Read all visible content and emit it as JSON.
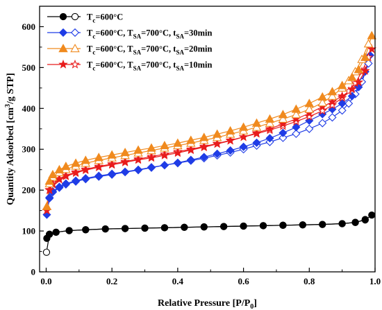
{
  "chart_data": {
    "type": "line",
    "xlabel": "Relative Pressure [P/P0]",
    "ylabel": "Quantity Adsorbed [cm3/g STP]",
    "xlim": [
      -0.02,
      1.0
    ],
    "ylim": [
      0,
      650
    ],
    "x_ticks": [
      "0.0",
      "0.2",
      "0.4",
      "0.6",
      "0.8",
      "1.0"
    ],
    "y_ticks": [
      "0",
      "100",
      "200",
      "300",
      "400",
      "500",
      "600"
    ],
    "grid": false,
    "legend_position": "top-left",
    "series": [
      {
        "name": "Tc=600°C",
        "legend": [
          {
            "base": "T",
            "sub": "c",
            "rest": "=600°C"
          }
        ],
        "color": "#000000",
        "marker": "circle",
        "adsorption": {
          "x": [
            0.002,
            0.01,
            0.03,
            0.07,
            0.12,
            0.18,
            0.24,
            0.3,
            0.36,
            0.42,
            0.48,
            0.54,
            0.6,
            0.66,
            0.72,
            0.78,
            0.84,
            0.9,
            0.94,
            0.97,
            0.99
          ],
          "y": [
            82,
            92,
            97,
            101,
            103,
            105,
            106,
            107,
            108,
            109,
            110,
            111,
            112,
            113,
            114,
            115,
            116,
            118,
            121,
            127,
            139
          ]
        },
        "desorption": {
          "x": [
            0.97,
            0.94,
            0.9,
            0.84,
            0.78,
            0.72,
            0.66,
            0.6,
            0.54,
            0.48,
            0.42,
            0.36,
            0.3,
            0.24,
            0.18,
            0.12,
            0.07,
            0.03,
            0.01,
            0.001
          ],
          "y": [
            128,
            121,
            118,
            116,
            115,
            114,
            113,
            112,
            111,
            110,
            109,
            108,
            107,
            106,
            105,
            103,
            101,
            97,
            92,
            48
          ]
        }
      },
      {
        "name": "Tc=600°C, TSA=700°C, tSA=30min",
        "legend": [
          {
            "base": "T",
            "sub": "c",
            "rest": "=600°C,  "
          },
          {
            "base": "T",
            "sub": "SA",
            "rest": "=700°C,  "
          },
          {
            "base": "t",
            "sub": "SA",
            "rest": "=30min"
          }
        ],
        "color": "#1f3ce6",
        "marker": "diamond",
        "adsorption": {
          "x": [
            0.002,
            0.01,
            0.02,
            0.04,
            0.06,
            0.09,
            0.12,
            0.16,
            0.2,
            0.24,
            0.28,
            0.32,
            0.36,
            0.4,
            0.44,
            0.48,
            0.52,
            0.56,
            0.6,
            0.64,
            0.68,
            0.72,
            0.76,
            0.8,
            0.84,
            0.87,
            0.9,
            0.93,
            0.95,
            0.97,
            0.985
          ],
          "y": [
            140,
            180,
            195,
            206,
            214,
            221,
            227,
            233,
            238,
            244,
            249,
            255,
            261,
            267,
            274,
            281,
            289,
            297,
            306,
            316,
            327,
            340,
            354,
            370,
            386,
            398,
            412,
            430,
            452,
            490,
            530
          ]
        },
        "desorption": {
          "x": [
            0.98,
            0.96,
            0.94,
            0.92,
            0.9,
            0.87,
            0.84,
            0.8,
            0.76,
            0.72,
            0.68,
            0.64,
            0.6,
            0.56,
            0.52,
            0.48,
            0.44,
            0.4,
            0.36,
            0.32,
            0.28,
            0.24,
            0.2,
            0.16,
            0.12,
            0.09,
            0.06,
            0.04,
            0.02,
            0.01
          ],
          "y": [
            510,
            465,
            435,
            412,
            395,
            378,
            364,
            350,
            338,
            328,
            318,
            309,
            300,
            292,
            285,
            278,
            272,
            266,
            261,
            256,
            250,
            245,
            240,
            235,
            229,
            223,
            216,
            208,
            197,
            182
          ]
        }
      },
      {
        "name": "Tc=600°C, TSA=700°C, tSA=20min",
        "legend": [
          {
            "base": "T",
            "sub": "c",
            "rest": "=600°C,  "
          },
          {
            "base": "T",
            "sub": "SA",
            "rest": "=700°C,  "
          },
          {
            "base": "t",
            "sub": "SA",
            "rest": "=20min"
          }
        ],
        "color": "#f08a1e",
        "marker": "triangle",
        "adsorption": {
          "x": [
            0.002,
            0.01,
            0.02,
            0.04,
            0.06,
            0.09,
            0.12,
            0.16,
            0.2,
            0.24,
            0.28,
            0.32,
            0.36,
            0.4,
            0.44,
            0.48,
            0.52,
            0.56,
            0.6,
            0.64,
            0.68,
            0.72,
            0.76,
            0.8,
            0.84,
            0.87,
            0.9,
            0.93,
            0.95,
            0.97,
            0.99
          ],
          "y": [
            160,
            222,
            238,
            250,
            258,
            266,
            273,
            280,
            286,
            292,
            298,
            303,
            309,
            315,
            322,
            329,
            337,
            345,
            354,
            364,
            374,
            385,
            398,
            412,
            428,
            441,
            456,
            476,
            495,
            525,
            578
          ]
        },
        "desorption": {
          "x": [
            0.98,
            0.96,
            0.94,
            0.92,
            0.9,
            0.87,
            0.84,
            0.8,
            0.76,
            0.72,
            0.68,
            0.64,
            0.6,
            0.56,
            0.52,
            0.48,
            0.44,
            0.4,
            0.36,
            0.32,
            0.28,
            0.24,
            0.2,
            0.16,
            0.12,
            0.09,
            0.06,
            0.04,
            0.02,
            0.01
          ],
          "y": [
            558,
            520,
            490,
            468,
            450,
            430,
            414,
            398,
            385,
            374,
            364,
            354,
            345,
            337,
            329,
            322,
            315,
            309,
            303,
            297,
            291,
            285,
            279,
            273,
            266,
            259,
            251,
            243,
            232,
            216
          ]
        }
      },
      {
        "name": "Tc=600°C, TSA=700°C, tSA=10min",
        "legend": [
          {
            "base": "T",
            "sub": "c",
            "rest": "=600°C,  "
          },
          {
            "base": "T",
            "sub": "SA",
            "rest": "=700°C,  "
          },
          {
            "base": "t",
            "sub": "SA",
            "rest": "=10min"
          }
        ],
        "color": "#e81c1c",
        "marker": "star",
        "adsorption": {
          "x": [
            0.002,
            0.01,
            0.02,
            0.04,
            0.06,
            0.09,
            0.12,
            0.16,
            0.2,
            0.24,
            0.28,
            0.32,
            0.36,
            0.4,
            0.44,
            0.48,
            0.52,
            0.56,
            0.6,
            0.64,
            0.68,
            0.72,
            0.76,
            0.8,
            0.84,
            0.87,
            0.9,
            0.93,
            0.95,
            0.97,
            0.99
          ],
          "y": [
            150,
            200,
            214,
            226,
            234,
            242,
            249,
            256,
            262,
            268,
            274,
            279,
            285,
            291,
            298,
            305,
            313,
            321,
            330,
            340,
            350,
            362,
            374,
            388,
            404,
            416,
            430,
            447,
            464,
            492,
            545
          ]
        },
        "desorption": {
          "x": [
            0.98,
            0.96,
            0.94,
            0.92,
            0.9,
            0.87,
            0.84,
            0.8,
            0.76,
            0.72,
            0.68,
            0.64,
            0.6,
            0.56,
            0.52,
            0.48,
            0.44,
            0.4,
            0.36,
            0.32,
            0.28,
            0.24,
            0.2,
            0.16,
            0.12,
            0.09,
            0.06,
            0.04,
            0.02,
            0.01
          ],
          "y": [
            525,
            490,
            462,
            442,
            426,
            408,
            394,
            380,
            368,
            357,
            347,
            338,
            330,
            322,
            314,
            307,
            300,
            294,
            288,
            282,
            276,
            270,
            264,
            258,
            251,
            244,
            236,
            228,
            217,
            201
          ]
        }
      }
    ]
  }
}
